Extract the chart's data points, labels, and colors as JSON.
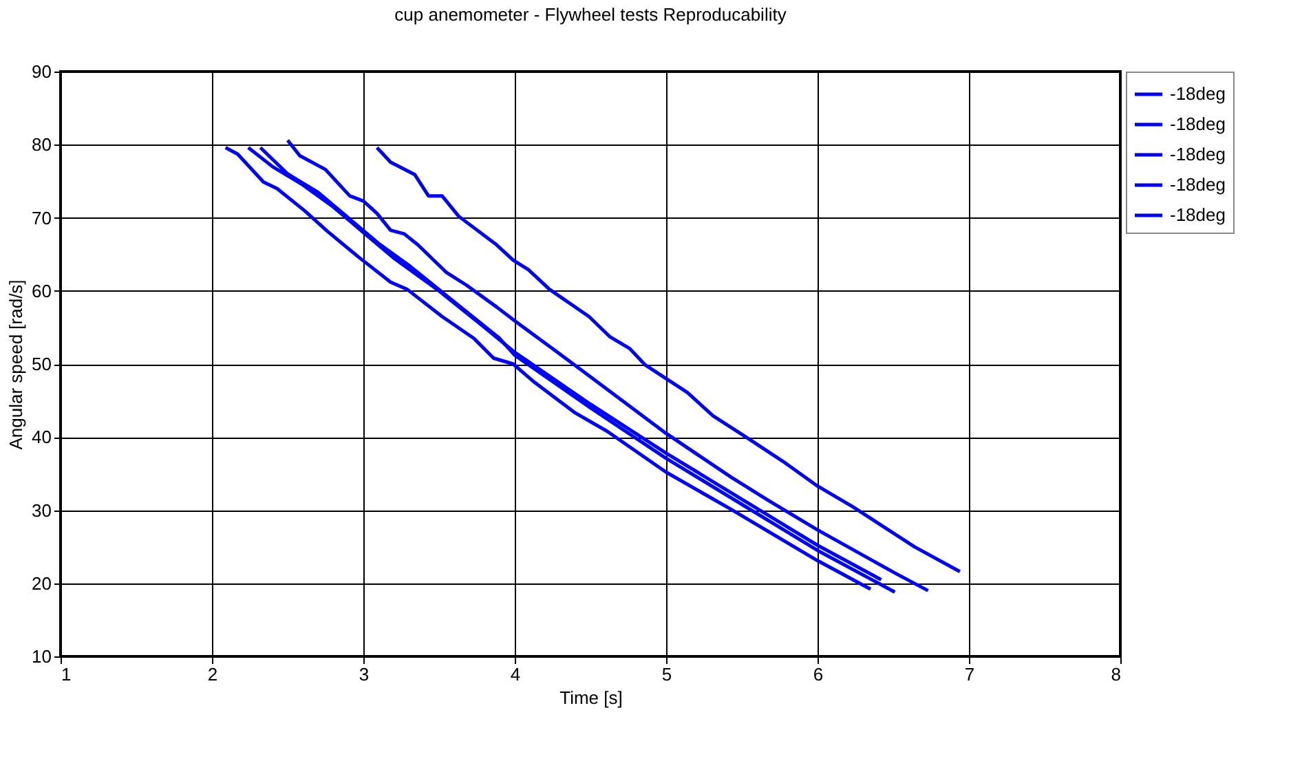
{
  "chart_data": {
    "type": "line",
    "title": "cup anemometer - Flywheel tests Reproducability",
    "xlabel": "Time [s]",
    "ylabel": "Angular speed [rad/s]",
    "xlim": [
      1,
      8
    ],
    "xticks": [
      1,
      2,
      3,
      4,
      5,
      6,
      7,
      8
    ],
    "ylim": [
      10,
      90
    ],
    "yticks": [
      10,
      20,
      30,
      40,
      50,
      60,
      70,
      80,
      90
    ],
    "grid": true,
    "legend": "right",
    "marker": "none",
    "line_style": "solid",
    "series": [
      {
        "name": "-18deg",
        "color": "#0000ff",
        "x": [
          2.09,
          2.17,
          2.34,
          2.43,
          2.61,
          2.76,
          2.97,
          3.18,
          3.29,
          3.52,
          3.73,
          3.86,
          3.99,
          4.13,
          4.4,
          4.61,
          5.0,
          5.43,
          6.0,
          6.35
        ],
        "values": [
          79.6,
          78.7,
          74.9,
          74,
          71,
          68.2,
          64.6,
          61.2,
          60.2,
          56.5,
          53.5,
          50.8,
          50.0,
          47.5,
          43.3,
          40.8,
          35.2,
          30.1,
          23.1,
          19.2
        ]
      },
      {
        "name": "-18deg",
        "color": "#0000ff",
        "x": [
          2.24,
          2.4,
          2.6,
          2.8,
          3.0,
          3.2,
          3.5,
          3.8,
          4.0,
          4.5,
          5.0,
          5.5,
          6.0,
          6.42
        ],
        "values": [
          79.6,
          77,
          74.5,
          71.5,
          68,
          64.5,
          60,
          55,
          51.6,
          44.5,
          37.8,
          31.5,
          25.2,
          20.5
        ]
      },
      {
        "name": "-18deg",
        "color": "#0000ff",
        "x": [
          2.32,
          2.5,
          2.7,
          2.9,
          3.1,
          3.3,
          3.6,
          3.9,
          4.0,
          4.5,
          5.0,
          5.5,
          6.0,
          6.51
        ],
        "values": [
          79.6,
          76,
          73.5,
          70,
          66.5,
          63.5,
          58.5,
          53.5,
          51.2,
          44,
          37.1,
          30.8,
          24.5,
          18.8
        ]
      },
      {
        "name": "-18deg",
        "color": "#0000ff",
        "x": [
          2.5,
          2.58,
          2.75,
          2.91,
          3.0,
          3.09,
          3.18,
          3.27,
          3.36,
          3.55,
          3.68,
          3.88,
          4.0,
          4.25,
          4.49,
          5.0,
          5.43,
          5.67,
          6.0,
          6.52,
          6.73
        ],
        "values": [
          80.6,
          78.5,
          76.6,
          73,
          72.3,
          70.6,
          68.3,
          67.8,
          66.3,
          62.5,
          60.8,
          57.8,
          55.9,
          52.1,
          48.4,
          40.5,
          34.5,
          31.4,
          27.3,
          21.3,
          19
        ]
      },
      {
        "name": "-18deg",
        "color": "#0000ff",
        "x": [
          3.09,
          3.18,
          3.34,
          3.43,
          3.52,
          3.63,
          3.88,
          3.99,
          4.09,
          4.23,
          4.49,
          4.63,
          4.76,
          4.86,
          5.14,
          5.31,
          5.52,
          5.77,
          6.0,
          6.23,
          6.64,
          6.94
        ],
        "values": [
          79.6,
          77.6,
          75.9,
          73,
          73,
          70.2,
          66.3,
          64.2,
          62.9,
          60.2,
          56.5,
          53.7,
          52.1,
          49.9,
          46.1,
          42.9,
          40.1,
          36.7,
          33.3,
          30.5,
          25,
          21.6
        ]
      }
    ]
  }
}
